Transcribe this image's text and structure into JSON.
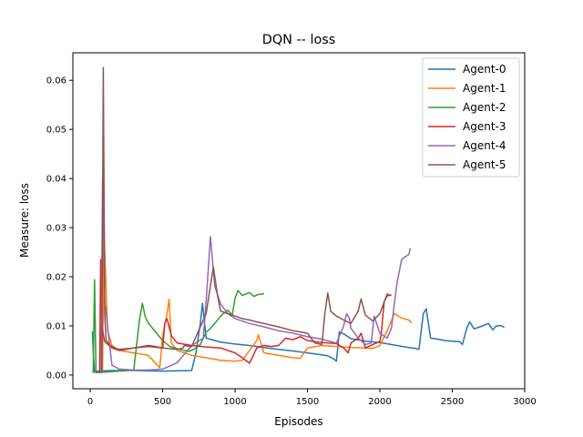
{
  "chart_data": {
    "type": "line",
    "title": "DQN -- loss",
    "xlabel": "Episodes",
    "ylabel": "Measure: loss",
    "xlim": [
      -120,
      3000
    ],
    "ylim": [
      -0.0028,
      0.0656
    ],
    "xticks": [
      0,
      500,
      1000,
      1500,
      2000,
      2500,
      3000
    ],
    "xtick_labels": [
      "0",
      "500",
      "1000",
      "1500",
      "2000",
      "2500",
      "3000"
    ],
    "yticks": [
      0.0,
      0.01,
      0.02,
      0.03,
      0.04,
      0.05,
      0.06
    ],
    "ytick_labels": [
      "0.00",
      "0.01",
      "0.02",
      "0.03",
      "0.04",
      "0.05",
      "0.06"
    ],
    "legend_position": "top-right",
    "series": [
      {
        "name": "Agent-0",
        "color": "#1f77b4",
        "x": [
          15,
          22,
          30,
          50,
          150,
          300,
          500,
          700,
          730,
          760,
          775,
          800,
          900,
          1000,
          1100,
          1200,
          1300,
          1400,
          1500,
          1600,
          1640,
          1680,
          1700,
          1720,
          1760,
          1800,
          1900,
          2000,
          2100,
          2200,
          2250,
          2270,
          2300,
          2320,
          2350,
          2400,
          2450,
          2500,
          2550,
          2570,
          2600,
          2620,
          2650,
          2700,
          2750,
          2780,
          2800,
          2830,
          2860
        ],
        "y": [
          0.0089,
          0.004,
          0.0007,
          0.0008,
          0.0009,
          0.0009,
          0.0008,
          0.0009,
          0.0045,
          0.0105,
          0.0146,
          0.0075,
          0.0067,
          0.0063,
          0.006,
          0.0056,
          0.0052,
          0.0049,
          0.0045,
          0.0041,
          0.0039,
          0.0033,
          0.0028,
          0.0088,
          0.0082,
          0.0074,
          0.0069,
          0.0066,
          0.0061,
          0.0056,
          0.0054,
          0.0052,
          0.0125,
          0.0135,
          0.0075,
          0.0073,
          0.007,
          0.0069,
          0.0068,
          0.0062,
          0.0095,
          0.0108,
          0.0094,
          0.0099,
          0.0105,
          0.0092,
          0.0099,
          0.0101,
          0.0097
        ]
      },
      {
        "name": "Agent-1",
        "color": "#ff7f0e",
        "x": [
          30,
          50,
          85,
          95,
          100,
          120,
          150,
          200,
          300,
          400,
          480,
          500,
          530,
          545,
          560,
          600,
          700,
          800,
          900,
          1000,
          1050,
          1100,
          1150,
          1160,
          1200,
          1300,
          1400,
          1450,
          1500,
          1600,
          1700,
          1800,
          1900,
          1950,
          2000,
          2050,
          2100,
          2150,
          2200,
          2220
        ],
        "y": [
          0.0005,
          0.0006,
          0.0006,
          0.0312,
          0.025,
          0.009,
          0.006,
          0.005,
          0.0045,
          0.004,
          0.0015,
          0.008,
          0.0125,
          0.0154,
          0.0065,
          0.005,
          0.004,
          0.0035,
          0.003,
          0.0028,
          0.003,
          0.005,
          0.007,
          0.0082,
          0.0045,
          0.004,
          0.0035,
          0.0034,
          0.0055,
          0.006,
          0.0058,
          0.0056,
          0.0055,
          0.0054,
          0.006,
          0.009,
          0.0125,
          0.0116,
          0.0112,
          0.0106
        ]
      },
      {
        "name": "Agent-2",
        "color": "#2ca02c",
        "x": [
          20,
          30,
          40,
          100,
          200,
          300,
          340,
          360,
          380,
          400,
          450,
          500,
          550,
          580,
          620,
          680,
          720,
          760,
          780,
          800,
          830,
          860,
          900,
          950,
          980,
          1000,
          1020,
          1050,
          1100,
          1130,
          1160,
          1200
        ],
        "y": [
          0.0004,
          0.0194,
          0.0005,
          0.0006,
          0.0008,
          0.001,
          0.0112,
          0.0146,
          0.0118,
          0.0106,
          0.0088,
          0.007,
          0.0058,
          0.0055,
          0.0052,
          0.0048,
          0.0053,
          0.0062,
          0.0075,
          0.0087,
          0.0095,
          0.0105,
          0.012,
          0.0132,
          0.0122,
          0.0157,
          0.0172,
          0.0162,
          0.0168,
          0.016,
          0.0164,
          0.0165
        ]
      },
      {
        "name": "Agent-3",
        "color": "#d62728",
        "x": [
          50,
          65,
          72,
          80,
          100,
          150,
          200,
          300,
          400,
          450,
          500,
          515,
          530,
          560,
          600,
          700,
          800,
          900,
          1000,
          1050,
          1100,
          1150,
          1200,
          1250,
          1300,
          1350,
          1400,
          1450,
          1500,
          1550,
          1600,
          1650,
          1700,
          1750,
          1780,
          1800,
          1850,
          1870,
          1900,
          1950,
          2000,
          2010,
          2030,
          2050,
          2080
        ],
        "y": [
          0.0005,
          0.0006,
          0.0235,
          0.0098,
          0.0068,
          0.0055,
          0.005,
          0.0055,
          0.006,
          0.0058,
          0.0055,
          0.0105,
          0.0115,
          0.008,
          0.0065,
          0.006,
          0.0057,
          0.0055,
          0.0045,
          0.0035,
          0.0024,
          0.0055,
          0.006,
          0.0058,
          0.006,
          0.0075,
          0.0072,
          0.0078,
          0.007,
          0.0068,
          0.0066,
          0.0065,
          0.0064,
          0.0055,
          0.0045,
          0.0065,
          0.0075,
          0.0085,
          0.0055,
          0.0062,
          0.0068,
          0.0085,
          0.015,
          0.0161,
          0.0163
        ]
      },
      {
        "name": "Agent-4",
        "color": "#9467bd",
        "x": [
          50,
          65,
          75,
          85,
          100,
          150,
          200,
          300,
          400,
          500,
          600,
          700,
          780,
          800,
          830,
          860,
          900,
          950,
          1000,
          1100,
          1200,
          1300,
          1400,
          1500,
          1600,
          1700,
          1750,
          1770,
          1790,
          1800,
          1850,
          1900,
          1940,
          1960,
          2000,
          2050,
          2080,
          2100,
          2120,
          2150,
          2170,
          2200,
          2210
        ],
        "y": [
          0.0006,
          0.0006,
          0.0007,
          0.0398,
          0.015,
          0.002,
          0.0012,
          0.001,
          0.001,
          0.0012,
          0.0025,
          0.006,
          0.0075,
          0.015,
          0.0282,
          0.018,
          0.0145,
          0.0125,
          0.0115,
          0.0105,
          0.0098,
          0.009,
          0.0085,
          0.0078,
          0.0073,
          0.0065,
          0.01,
          0.0125,
          0.0115,
          0.0095,
          0.0075,
          0.0062,
          0.0065,
          0.012,
          0.0085,
          0.0075,
          0.0095,
          0.0145,
          0.019,
          0.0235,
          0.024,
          0.0245,
          0.0258
        ]
      },
      {
        "name": "Agent-5",
        "color": "#8c564b",
        "x": [
          60,
          80,
          90,
          100,
          110,
          140,
          170,
          200,
          300,
          400,
          500,
          600,
          640,
          650,
          700,
          800,
          850,
          880,
          900,
          950,
          1000,
          1050,
          1100,
          1150,
          1200,
          1300,
          1400,
          1500,
          1550,
          1600,
          1620,
          1640,
          1660,
          1700,
          1750,
          1800,
          1850,
          1870,
          1900,
          1950,
          2000,
          2050,
          2070
        ],
        "y": [
          0.0005,
          0.0006,
          0.0626,
          0.012,
          0.007,
          0.006,
          0.0055,
          0.0052,
          0.0055,
          0.0058,
          0.0055,
          0.0052,
          0.0055,
          0.006,
          0.0058,
          0.0125,
          0.022,
          0.016,
          0.013,
          0.0125,
          0.012,
          0.0115,
          0.0112,
          0.0108,
          0.0105,
          0.0098,
          0.009,
          0.0085,
          0.0065,
          0.0062,
          0.0125,
          0.0167,
          0.013,
          0.012,
          0.0112,
          0.0105,
          0.013,
          0.0155,
          0.0122,
          0.011,
          0.0125,
          0.0165,
          0.0162
        ]
      }
    ]
  }
}
